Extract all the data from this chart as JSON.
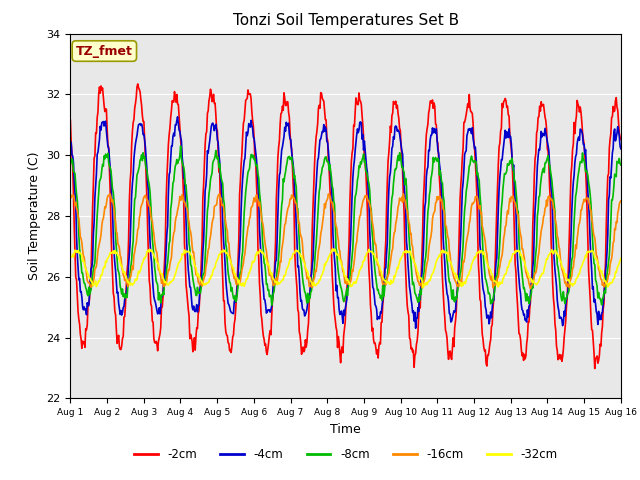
{
  "title": "Tonzi Soil Temperatures Set B",
  "xlabel": "Time",
  "ylabel": "Soil Temperature (C)",
  "ylim": [
    22,
    34
  ],
  "xlim": [
    0,
    15
  ],
  "xtick_labels": [
    "Aug 1",
    "Aug 2",
    "Aug 3",
    "Aug 4",
    "Aug 5",
    "Aug 6",
    "Aug 7",
    "Aug 8",
    "Aug 9",
    "Aug 10",
    "Aug 11",
    "Aug 12",
    "Aug 13",
    "Aug 14",
    "Aug 15",
    "Aug 16"
  ],
  "ytick_labels": [
    "22",
    "24",
    "26",
    "28",
    "30",
    "32",
    "34"
  ],
  "yticks": [
    22,
    24,
    26,
    28,
    30,
    32,
    34
  ],
  "annotation_text": "TZ_fmet",
  "annotation_color": "#990000",
  "annotation_bg": "#ffffcc",
  "colors": {
    "neg2cm": "#ff0000",
    "neg4cm": "#0000cc",
    "neg8cm": "#00bb00",
    "neg16cm": "#ff8800",
    "neg32cm": "#ffff00"
  },
  "legend_labels": [
    "-2cm",
    "-4cm",
    "-8cm",
    "-16cm",
    "-32cm"
  ],
  "bg_color": "#e8e8e8",
  "linewidth": 1.2
}
